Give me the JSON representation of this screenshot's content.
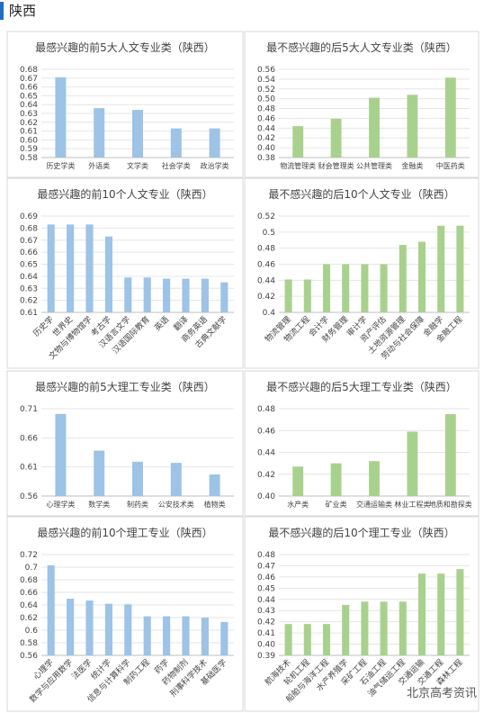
{
  "header": {
    "title": "陕西"
  },
  "watermark": "北京高考资讯",
  "chart_data": [
    {
      "type": "bar",
      "title": "最感兴趣的前5大人文专业类（陕西）",
      "categories": [
        "历史学类",
        "外语类",
        "文学类",
        "社会学类",
        "政治学类"
      ],
      "values": [
        0.671,
        0.636,
        0.634,
        0.613,
        0.613
      ],
      "color": "#9dc3e6",
      "ylim": [
        0.58,
        0.68
      ],
      "yticks": [
        0.58,
        0.59,
        {
          "value": 0.6,
          "label": "0.60"
        },
        0.61,
        0.62,
        0.63,
        0.64,
        0.65,
        0.66,
        0.67,
        0.68
      ]
    },
    {
      "type": "bar",
      "title": "最不感兴趣的后5大人文专业类（陕西）",
      "categories": [
        "物流管理类",
        "财会管理类",
        "公共管理类",
        "金融类",
        "中医药类"
      ],
      "values": [
        0.444,
        0.459,
        0.502,
        0.508,
        0.543
      ],
      "color": "#a9d18e",
      "ylim": [
        0.38,
        0.56
      ],
      "yticks": [
        0.38,
        {
          "value": 0.4,
          "label": "0.40"
        },
        0.42,
        0.44,
        0.46,
        0.48,
        {
          "value": 0.5,
          "label": "0.50"
        },
        0.52,
        0.54,
        0.56
      ]
    },
    {
      "type": "bar",
      "title": "最感兴趣的前10个人文专业（陕西）",
      "categories": [
        "历史学",
        "世界史",
        "文物与博物馆学",
        "考古学",
        "汉语言文学",
        "汉语国际教育",
        "英语",
        "翻译",
        "商务英语",
        "古典文献学"
      ],
      "values": [
        0.683,
        0.683,
        0.683,
        0.673,
        0.639,
        0.639,
        0.638,
        0.638,
        0.638,
        0.635
      ],
      "color": "#9dc3e6",
      "ylim": [
        0.61,
        0.69
      ],
      "yticks": [
        0.61,
        0.62,
        0.63,
        0.64,
        0.65,
        0.66,
        0.67,
        0.68,
        0.69
      ]
    },
    {
      "type": "bar",
      "title": "最不感兴趣的后10个人文专业（陕西）",
      "categories": [
        "物流管理",
        "物流工程",
        "会计学",
        "财务管理",
        "审计学",
        "资产评估",
        "土地资源管理",
        "劳动与社会保障",
        "金融学",
        "金融工程"
      ],
      "values": [
        0.441,
        0.441,
        0.46,
        0.46,
        0.46,
        0.46,
        0.484,
        0.488,
        0.508,
        0.508
      ],
      "color": "#a9d18e",
      "ylim": [
        0.4,
        0.52
      ],
      "yticks": [
        0.4,
        0.42,
        0.44,
        0.46,
        0.48,
        0.5,
        0.52
      ]
    },
    {
      "type": "bar",
      "title": "最感兴趣的前5大理工专业类（陕西）",
      "categories": [
        "心理学类",
        "数学类",
        "制药类",
        "公安技术类",
        "植物类"
      ],
      "values": [
        0.701,
        0.638,
        0.619,
        0.617,
        0.597
      ],
      "color": "#9dc3e6",
      "ylim": [
        0.56,
        0.71
      ],
      "yticks": [
        0.56,
        0.61,
        0.66,
        0.71
      ]
    },
    {
      "type": "bar",
      "title": "最不感兴趣的后5大理工专业类（陕西）",
      "categories": [
        "水产类",
        "矿业类",
        "交通运输类",
        "林业工程类",
        "地质和勘探类"
      ],
      "values": [
        0.427,
        0.43,
        0.432,
        0.459,
        0.475
      ],
      "color": "#a9d18e",
      "ylim": [
        0.4,
        0.48
      ],
      "yticks": [
        {
          "value": 0.4,
          "label": "0.40"
        },
        0.42,
        0.44,
        0.46,
        0.48
      ]
    },
    {
      "type": "bar",
      "title": "最感兴趣的前10个理工专业（陕西）",
      "categories": [
        "心理学",
        "数学与应用数学",
        "法医学",
        "统计学",
        "信息与计算科学",
        "制药工程",
        "药学",
        "药物制剂",
        "刑事科学技术",
        "基础医学"
      ],
      "values": [
        0.703,
        0.65,
        0.647,
        0.642,
        0.641,
        0.622,
        0.622,
        0.622,
        0.62,
        0.613
      ],
      "color": "#9dc3e6",
      "ylim": [
        0.56,
        0.72
      ],
      "yticks": [
        0.56,
        0.58,
        0.6,
        0.62,
        0.64,
        0.66,
        0.68,
        0.7,
        0.72
      ]
    },
    {
      "type": "bar",
      "title": "最不感兴趣的后10个理工专业（陕西）",
      "categories": [
        "航海技术",
        "轮机工程",
        "船舶与海洋工程",
        "水产养殖学",
        "采矿工程",
        "石油工程",
        "油气储运工程",
        "交通运输",
        "交通工程",
        "森林工程"
      ],
      "values": [
        0.418,
        0.418,
        0.418,
        0.435,
        0.438,
        0.438,
        0.438,
        0.463,
        0.463,
        0.467
      ],
      "color": "#a9d18e",
      "ylim": [
        0.39,
        0.48
      ],
      "yticks": [
        0.39,
        {
          "value": 0.4,
          "label": "0.40"
        },
        0.41,
        0.42,
        0.43,
        0.44,
        0.45,
        0.46,
        0.47,
        0.48
      ]
    }
  ]
}
